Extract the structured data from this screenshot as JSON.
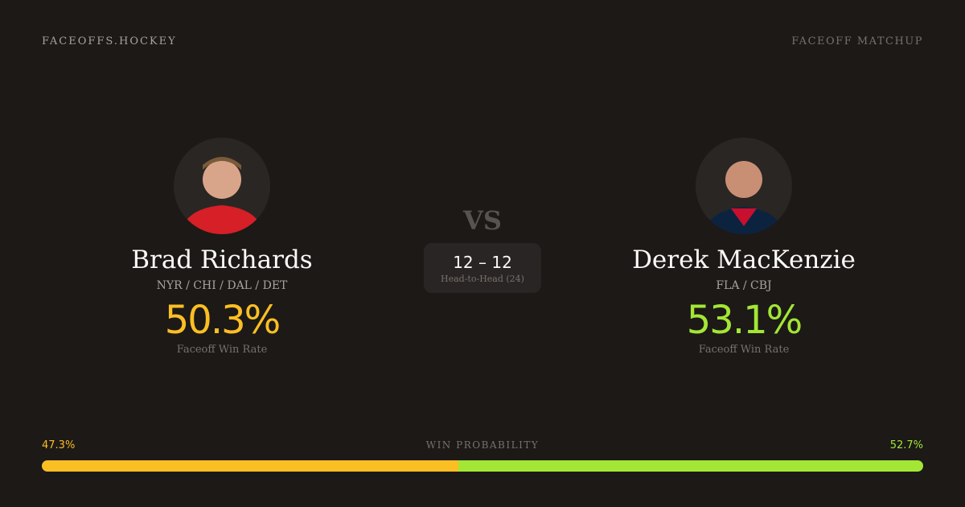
{
  "header": {
    "brand": "FACEOFFS.HOCKEY",
    "tag": "FACEOFF MATCHUP"
  },
  "players": [
    {
      "name": "Brad Richards",
      "teams": "NYR / CHI / DAL / DET",
      "win_rate": "50.3%",
      "win_rate_label": "Faceoff Win Rate",
      "color": "#fbbf24",
      "jersey": "#d61f26"
    },
    {
      "name": "Derek MacKenzie",
      "teams": "FLA / CBJ",
      "win_rate": "53.1%",
      "win_rate_label": "Faceoff Win Rate",
      "color": "#a3e635",
      "jersey": "#0c2340"
    }
  ],
  "vs": "VS",
  "head_to_head": {
    "score": "12 – 12",
    "label": "Head-to-Head (24)"
  },
  "win_probability": {
    "title": "WIN PROBABILITY",
    "left": "47.3%",
    "right": "52.7%",
    "left_value": 47.3,
    "right_value": 52.7
  }
}
